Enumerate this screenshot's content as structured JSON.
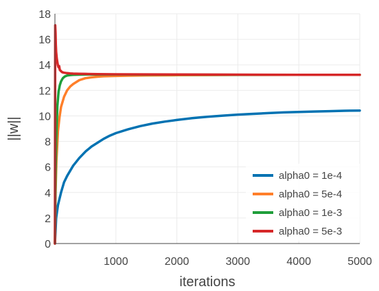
{
  "chart_data": {
    "type": "line",
    "title": "",
    "xlabel": "iterations",
    "ylabel": "||w||",
    "xlim": [
      0,
      5000
    ],
    "ylim": [
      0,
      18
    ],
    "xticks": [
      1000,
      2000,
      3000,
      4000,
      5000
    ],
    "yticks": [
      0,
      2,
      4,
      6,
      8,
      10,
      12,
      14,
      16,
      18
    ],
    "grid": true,
    "legend_position": "bottom-right",
    "series": [
      {
        "name": "alpha0 = 1e-4",
        "color": "#0072b2",
        "x": [
          0,
          20,
          50,
          100,
          150,
          200,
          300,
          400,
          500,
          600,
          700,
          800,
          900,
          1000,
          1200,
          1400,
          1600,
          1800,
          2000,
          2250,
          2500,
          2750,
          3000,
          3250,
          3500,
          3750,
          4000,
          4250,
          4500,
          4750,
          5000
        ],
        "y": [
          0,
          2.0,
          3.0,
          4.0,
          4.8,
          5.3,
          6.1,
          6.7,
          7.2,
          7.6,
          7.9,
          8.2,
          8.45,
          8.65,
          8.95,
          9.2,
          9.4,
          9.55,
          9.68,
          9.82,
          9.93,
          10.02,
          10.1,
          10.16,
          10.22,
          10.27,
          10.31,
          10.34,
          10.37,
          10.4,
          10.42
        ]
      },
      {
        "name": "alpha0 = 5e-4",
        "color": "#ff7f2a",
        "x": [
          0,
          10,
          25,
          50,
          75,
          100,
          150,
          200,
          250,
          300,
          400,
          500,
          600,
          700,
          800,
          1000,
          1200,
          1500,
          2000,
          2500,
          3000,
          4000,
          5000
        ],
        "y": [
          0,
          4.0,
          6.5,
          8.8,
          9.9,
          10.7,
          11.5,
          12.0,
          12.3,
          12.5,
          12.8,
          12.95,
          13.02,
          13.07,
          13.1,
          13.13,
          13.15,
          13.17,
          13.19,
          13.2,
          13.21,
          13.22,
          13.22
        ]
      },
      {
        "name": "alpha0 = 1e-3",
        "color": "#1f9e3a",
        "x": [
          0,
          10,
          20,
          40,
          60,
          80,
          100,
          130,
          160,
          200,
          250,
          300,
          400,
          500,
          700,
          1000,
          1500,
          2000,
          3000,
          4000,
          5000
        ],
        "y": [
          0,
          5.0,
          8.0,
          10.8,
          11.9,
          12.4,
          12.7,
          12.95,
          13.08,
          13.16,
          13.2,
          13.22,
          13.23,
          13.24,
          13.24,
          13.24,
          13.23,
          13.23,
          13.22,
          13.22,
          13.22
        ]
      },
      {
        "name": "alpha0 = 5e-3",
        "color": "#d62728",
        "x": [
          0,
          5,
          10,
          15,
          20,
          30,
          40,
          50,
          60,
          70,
          80,
          100,
          120,
          150,
          200,
          250,
          300,
          400,
          500,
          700,
          1000,
          1500,
          2000,
          3000,
          4000,
          5000
        ],
        "y": [
          0,
          17.1,
          16.5,
          15.6,
          15.0,
          14.5,
          14.2,
          13.95,
          13.8,
          13.9,
          13.6,
          13.5,
          13.42,
          13.38,
          13.35,
          13.33,
          13.31,
          13.3,
          13.29,
          13.27,
          13.26,
          13.25,
          13.24,
          13.23,
          13.22,
          13.22
        ]
      }
    ]
  }
}
